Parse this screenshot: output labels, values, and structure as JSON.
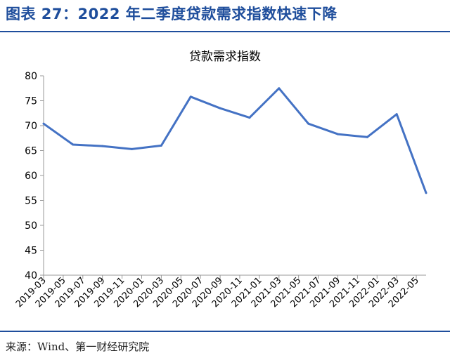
{
  "header": {
    "title": "图表 27：2022 年二季度贷款需求指数快速下降"
  },
  "footer": {
    "source": "来源：Wind、第一财经研究院"
  },
  "chart_data": {
    "type": "line",
    "title": "贷款需求指数",
    "xlabel": "",
    "ylabel": "",
    "ylim": [
      40,
      80
    ],
    "yticks": [
      40,
      45,
      50,
      55,
      60,
      65,
      70,
      75,
      80
    ],
    "grid": false,
    "legend": "none",
    "line_color": "#4472c4",
    "categories": [
      "2019-03",
      "2019-05",
      "2019-07",
      "2019-09",
      "2019-11",
      "2020-01",
      "2020-03",
      "2020-05",
      "2020-07",
      "2020-09",
      "2020-11",
      "2021-01",
      "2021-03",
      "2021-05",
      "2021-07",
      "2021-09",
      "2021-11",
      "2022-01",
      "2022-03",
      "2022-05"
    ],
    "x": [
      "2019-03",
      "2019-06",
      "2019-09",
      "2019-12",
      "2020-03",
      "2020-06",
      "2020-09",
      "2020-12",
      "2021-03",
      "2021-06",
      "2021-09",
      "2021-12",
      "2022-03",
      "2022-06"
    ],
    "values": [
      70.4,
      66.2,
      65.9,
      65.3,
      66.0,
      75.8,
      73.5,
      71.6,
      77.5,
      70.4,
      68.3,
      67.7,
      72.3,
      56.5
    ]
  }
}
